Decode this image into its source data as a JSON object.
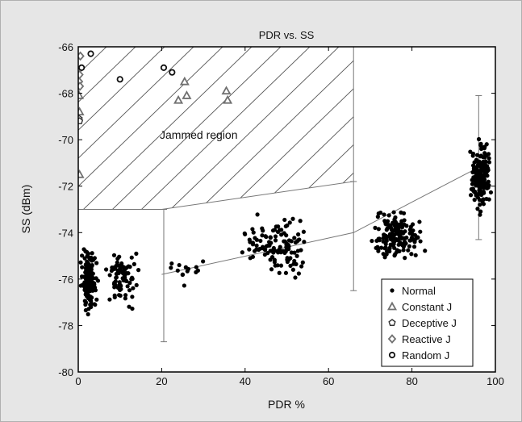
{
  "chart_data": {
    "type": "scatter",
    "title": "PDR vs. SS",
    "xlabel": "PDR %",
    "ylabel": "SS (dBm)",
    "xlim": [
      0,
      100
    ],
    "ylim": [
      -80,
      -66
    ],
    "x_ticks": [
      0,
      20,
      40,
      60,
      80,
      100
    ],
    "y_ticks": [
      -80,
      -78,
      -76,
      -74,
      -72,
      -70,
      -68,
      -66
    ],
    "grid": false,
    "legend_position": "bottom-right",
    "annotation": "Jammed region",
    "colors": {
      "figure_bg": "#e6e6e6",
      "plot_bg": "#ffffff",
      "normal": "#000000",
      "jammer": "#707070",
      "lines": "#777777"
    },
    "jammed_region": {
      "polygon": [
        [
          0,
          -66
        ],
        [
          66,
          -66
        ],
        [
          66,
          -71.8
        ],
        [
          20,
          -73
        ],
        [
          0,
          -73
        ]
      ]
    },
    "fit_line": [
      [
        20,
        -75.8
      ],
      [
        66,
        -74
      ],
      [
        98,
        -71
      ]
    ],
    "error_bars": [
      {
        "x": 20.5,
        "low": -78.7,
        "high": -73
      },
      {
        "x": 66,
        "low": -76.5,
        "high": -71.8
      },
      {
        "x": 96,
        "low": -74.3,
        "high": -68.1
      }
    ],
    "series": [
      {
        "name": "Normal",
        "marker": "dot",
        "clusters": [
          {
            "x_center": 2.5,
            "x_spread": 2.5,
            "y_center": -76.0,
            "y_spread": 1.0,
            "count": 150
          },
          {
            "x_center": 10.5,
            "x_spread": 5.0,
            "y_center": -75.9,
            "y_spread": 1.0,
            "count": 80
          },
          {
            "x_center": 25.0,
            "x_spread": 6.0,
            "y_center": -75.7,
            "y_spread": 0.6,
            "count": 14
          },
          {
            "x_center": 48.0,
            "x_spread": 10.0,
            "y_center": -74.6,
            "y_spread": 1.0,
            "count": 120
          },
          {
            "x_center": 76.0,
            "x_spread": 8.5,
            "y_center": -74.2,
            "y_spread": 0.9,
            "count": 150
          },
          {
            "x_center": 96.5,
            "x_spread": 3.0,
            "y_center": -71.6,
            "y_spread": 1.2,
            "count": 170
          }
        ]
      },
      {
        "name": "Constant J",
        "marker": "triangle",
        "points": [
          [
            0.2,
            -68.1
          ],
          [
            0.3,
            -68.8
          ],
          [
            0.3,
            -71.5
          ],
          [
            24,
            -68.3
          ],
          [
            25.5,
            -67.5
          ],
          [
            26,
            -68.1
          ],
          [
            35.5,
            -67.9
          ],
          [
            35.8,
            -68.3
          ]
        ]
      },
      {
        "name": "Deceptive J",
        "marker": "pentagon",
        "points": [
          [
            0.2,
            -69.1
          ],
          [
            0.3,
            -69.2
          ]
        ]
      },
      {
        "name": "Reactive J",
        "marker": "diamond",
        "points": [
          [
            0.5,
            -66.4
          ],
          [
            0.3,
            -67.2
          ],
          [
            0.2,
            -67.5
          ],
          [
            0.4,
            -67.7
          ]
        ]
      },
      {
        "name": "Random J",
        "marker": "circle",
        "points": [
          [
            0.8,
            -66.9
          ],
          [
            3.0,
            -66.3
          ],
          [
            10.0,
            -67.4
          ],
          [
            20.5,
            -66.9
          ],
          [
            22.5,
            -67.1
          ]
        ]
      }
    ]
  }
}
